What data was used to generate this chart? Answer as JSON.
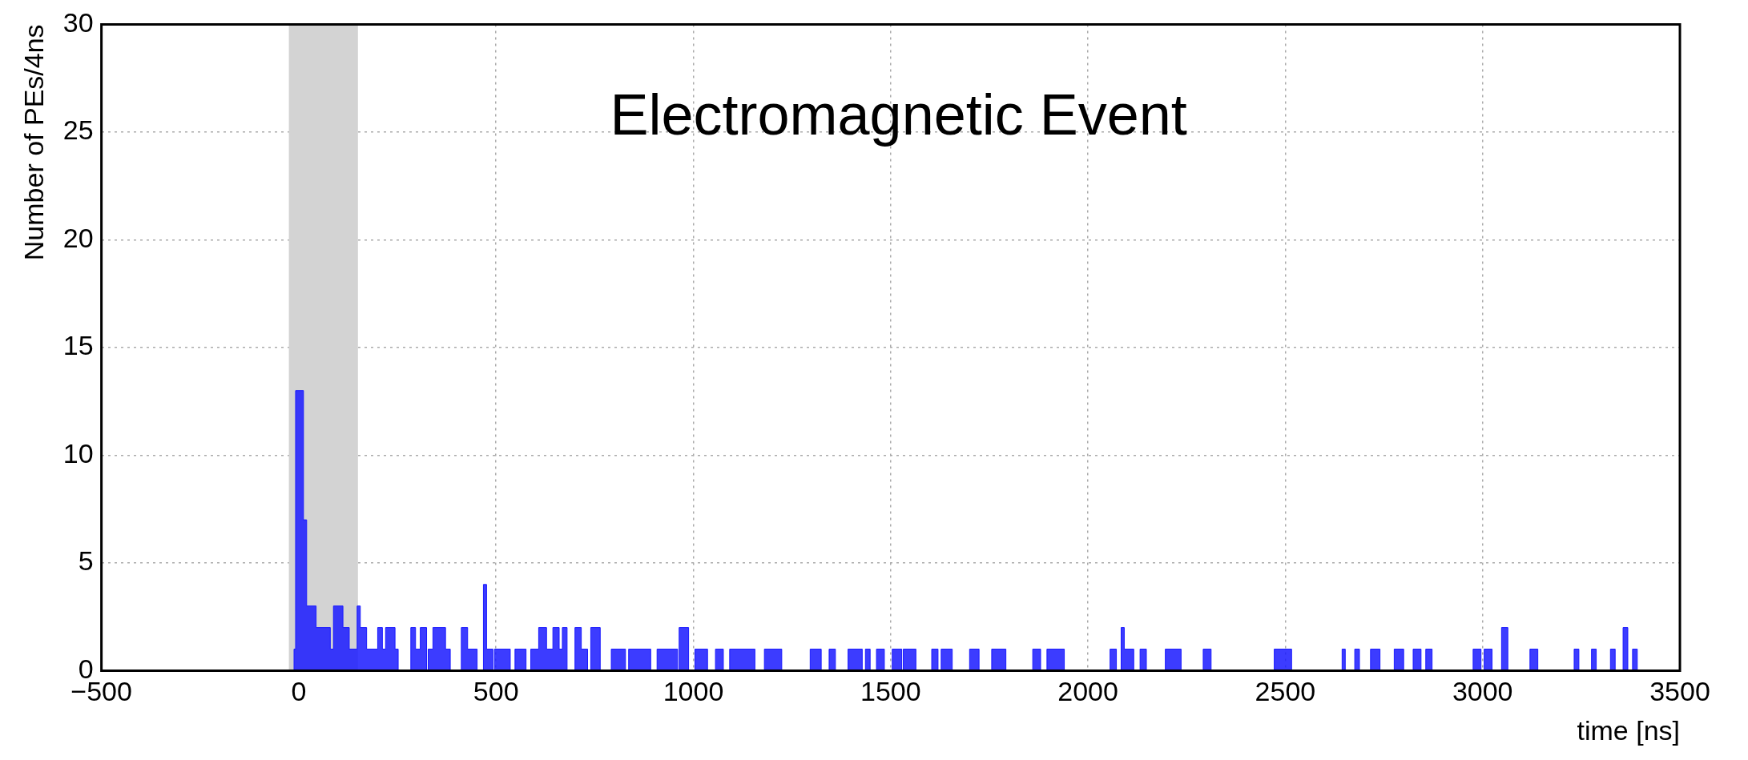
{
  "chart_data": {
    "type": "histogram",
    "title": "Electromagnetic Event",
    "xlabel": "time [ns]",
    "ylabel": "Number of PEs/4ns",
    "bins": [
      -500,
      -12,
      -8,
      12,
      20,
      44,
      80,
      88,
      112,
      128,
      148,
      156,
      172,
      200,
      212,
      220,
      244,
      252,
      284,
      296,
      308,
      324,
      328,
      340,
      372,
      384,
      412,
      428,
      452,
      468,
      476,
      492,
      496,
      536,
      548,
      576,
      588,
      608,
      628,
      644,
      660,
      668,
      680,
      700,
      716,
      732,
      740,
      764,
      792,
      828,
      836,
      892,
      908,
      960,
      964,
      988,
      1004,
      1036,
      1056,
      1076,
      1092,
      1156,
      1180,
      1224,
      1296,
      1324,
      1344,
      1360,
      1392,
      1428,
      1436,
      1448,
      1464,
      1484,
      1504,
      1528,
      1532,
      1564,
      1604,
      1620,
      1628,
      1656,
      1700,
      1724,
      1756,
      1792,
      1860,
      1880,
      1896,
      1940,
      2056,
      2072,
      2084,
      2092,
      2116,
      2132,
      2148,
      2196,
      2236,
      2292,
      2312,
      2472,
      2516,
      2644,
      2652,
      2676,
      2688,
      2716,
      2740,
      2776,
      2800,
      2824,
      2844,
      2856,
      2872,
      2976,
      2996,
      3004,
      3024,
      3048,
      3064,
      3120,
      3140,
      3232,
      3244,
      3276,
      3288,
      3324,
      3336,
      3356,
      3368,
      3380,
      3392,
      3500
    ],
    "values": [
      0,
      1,
      13,
      7,
      3,
      2,
      1,
      3,
      2,
      1,
      3,
      2,
      1,
      2,
      1,
      2,
      1,
      0,
      2,
      1,
      2,
      0,
      1,
      2,
      1,
      0,
      2,
      1,
      0,
      4,
      1,
      0,
      1,
      0,
      1,
      0,
      1,
      2,
      1,
      2,
      1,
      2,
      0,
      2,
      1,
      0,
      2,
      0,
      1,
      0,
      1,
      0,
      1,
      0,
      2,
      0,
      1,
      0,
      1,
      0,
      1,
      0,
      1,
      0,
      1,
      0,
      1,
      0,
      1,
      0,
      1,
      0,
      1,
      0,
      1,
      0,
      1,
      0,
      1,
      0,
      1,
      0,
      1,
      0,
      1,
      0,
      1,
      0,
      1,
      0,
      1,
      0,
      2,
      1,
      0,
      1,
      0,
      1,
      0,
      1,
      0,
      1,
      0,
      1,
      0,
      1,
      0,
      1,
      0,
      1,
      0,
      1,
      0,
      1,
      0,
      1,
      0,
      1,
      0,
      2,
      0,
      1,
      0,
      1,
      0,
      1,
      0,
      1,
      0,
      2,
      0,
      1,
      0
    ],
    "color": "#1a1aff",
    "xlim": [
      -500,
      3500
    ],
    "xticks": [
      -500,
      0,
      500,
      1000,
      1500,
      2000,
      2500,
      3000,
      3500
    ],
    "ylim": [
      0,
      30
    ],
    "yticks": [
      0,
      5,
      10,
      15,
      20,
      25,
      30
    ],
    "grid": true,
    "bands": [
      {
        "axis": "x",
        "from": -25,
        "to": 150,
        "color": "#d3d3d3"
      }
    ]
  }
}
